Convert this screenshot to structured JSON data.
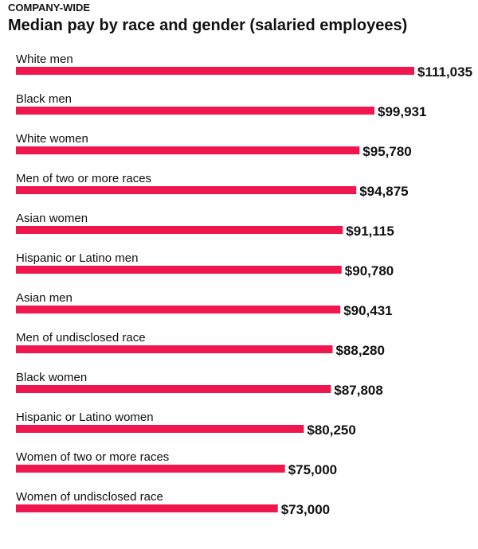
{
  "header": {
    "kicker": "COMPANY-WIDE",
    "title": "Median pay by race and gender (salaried employees)"
  },
  "colors": {
    "bar": "#f0174f",
    "text": "#111111"
  },
  "chart_data": {
    "type": "bar",
    "orientation": "horizontal",
    "title": "Median pay by race and gender (salaried employees)",
    "categories": [
      "White men",
      "Black men",
      "White women",
      "Men of two or more races",
      "Asian women",
      "Hispanic or Latino men",
      "Asian men",
      "Men of undisclosed race",
      "Black women",
      "Hispanic or Latino women",
      "Women of two or more races",
      "Women of undisclosed race"
    ],
    "values": [
      111035,
      99931,
      95780,
      94875,
      91115,
      90780,
      90431,
      88280,
      87808,
      80250,
      75000,
      73000
    ],
    "value_labels": [
      "$111,035",
      "$99,931",
      "$95,780",
      "$94,875",
      "$91,115",
      "$90,780",
      "$90,431",
      "$88,280",
      "$87,808",
      "$80,250",
      "$75,000",
      "$73,000"
    ],
    "grid": false,
    "legend": "none"
  }
}
